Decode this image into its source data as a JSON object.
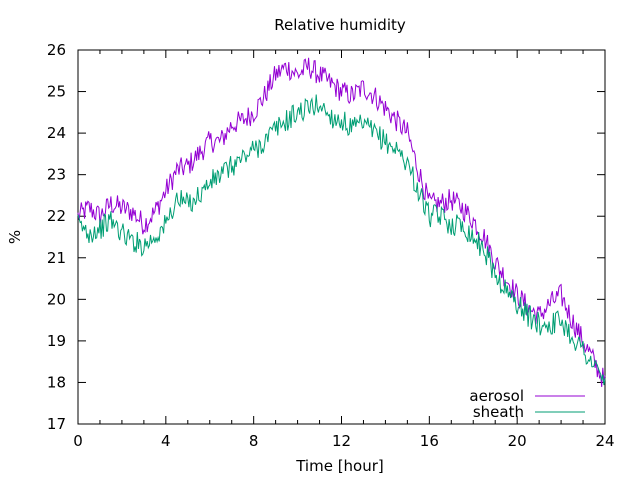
{
  "chart_data": {
    "type": "line",
    "title": "Relative humidity",
    "xlabel": "Time [hour]",
    "ylabel": "%",
    "xlim": [
      0,
      24
    ],
    "ylim": [
      17,
      26
    ],
    "xticks": [
      0,
      4,
      8,
      12,
      16,
      20,
      24
    ],
    "yticks": [
      17,
      18,
      19,
      20,
      21,
      22,
      23,
      24,
      25,
      26
    ],
    "grid": false,
    "legend_position": "bottom-right",
    "series": [
      {
        "name": "aerosol",
        "color": "#9400d3",
        "x": [
          0,
          0.5,
          1,
          1.5,
          2,
          2.5,
          3,
          3.5,
          4,
          4.5,
          5,
          5.5,
          6,
          6.5,
          7,
          7.5,
          8,
          8.5,
          9,
          9.5,
          10,
          10.5,
          11,
          11.5,
          12,
          12.5,
          13,
          13.5,
          14,
          14.5,
          15,
          15.5,
          16,
          16.5,
          17,
          17.5,
          18,
          18.5,
          19,
          19.5,
          20,
          20.5,
          21,
          21.5,
          22,
          22.5,
          23,
          23.5,
          24
        ],
        "values": [
          22.0,
          22.2,
          22.0,
          22.3,
          22.2,
          22.1,
          21.8,
          22.1,
          22.6,
          23.1,
          23.2,
          23.5,
          23.8,
          23.8,
          24.2,
          24.3,
          24.5,
          24.9,
          25.4,
          25.6,
          25.4,
          25.6,
          25.4,
          25.2,
          25.0,
          24.9,
          25.1,
          24.9,
          24.6,
          24.3,
          24.0,
          23.1,
          22.3,
          22.3,
          22.4,
          22.2,
          21.9,
          21.5,
          20.9,
          20.5,
          20.1,
          19.8,
          19.6,
          19.9,
          20.1,
          19.5,
          19.0,
          18.5,
          18.0
        ]
      },
      {
        "name": "sheath",
        "color": "#009e73",
        "x": [
          0,
          0.5,
          1,
          1.5,
          2,
          2.5,
          3,
          3.5,
          4,
          4.5,
          5,
          5.5,
          6,
          6.5,
          7,
          7.5,
          8,
          8.5,
          9,
          9.5,
          10,
          10.5,
          11,
          11.5,
          12,
          12.5,
          13,
          13.5,
          14,
          14.5,
          15,
          15.5,
          16,
          16.5,
          17,
          17.5,
          18,
          18.5,
          19,
          19.5,
          20,
          20.5,
          21,
          21.5,
          22,
          22.5,
          23,
          23.5,
          24
        ],
        "values": [
          21.8,
          21.6,
          21.7,
          21.9,
          21.6,
          21.4,
          21.3,
          21.5,
          21.8,
          22.4,
          22.3,
          22.5,
          22.8,
          23.0,
          23.2,
          23.4,
          23.6,
          23.8,
          24.1,
          24.3,
          24.5,
          24.6,
          24.7,
          24.4,
          24.3,
          24.1,
          24.2,
          24.0,
          23.8,
          23.6,
          23.3,
          22.6,
          22.0,
          22.0,
          21.8,
          21.8,
          21.5,
          21.2,
          20.6,
          20.2,
          19.9,
          19.6,
          19.4,
          19.4,
          19.5,
          19.1,
          18.8,
          18.4,
          18.0
        ]
      }
    ]
  }
}
